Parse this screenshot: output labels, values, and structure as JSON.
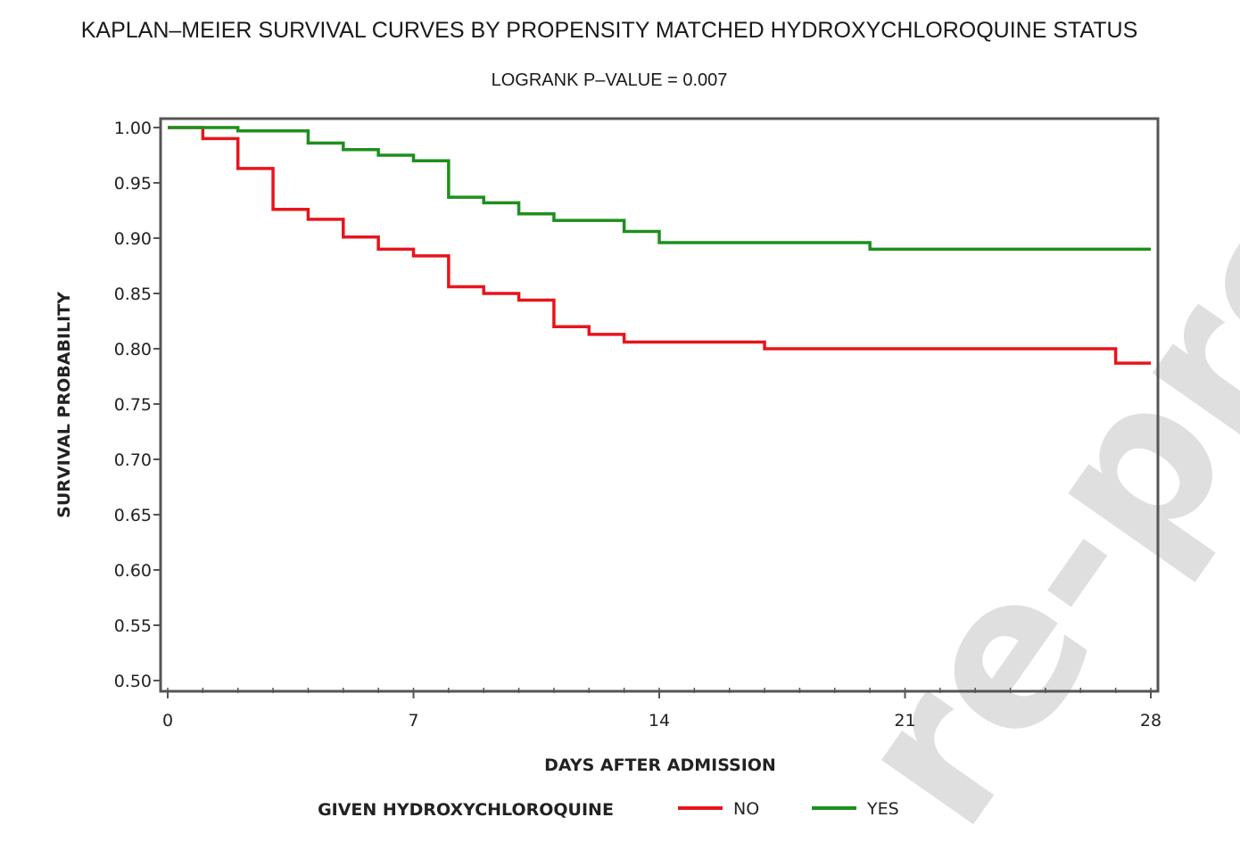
{
  "watermark": "re-proof",
  "colors": {
    "no": "#e8141b",
    "yes": "#1e8f1e",
    "frame": "#555555"
  },
  "chart_data": {
    "type": "line",
    "step": true,
    "title": "KAPLAN–MEIER SURVIVAL CURVES BY PROPENSITY MATCHED HYDROXYCHLOROQUINE STATUS",
    "subtitle": "LOGRANK P–VALUE = 0.007",
    "xlabel": "DAYS AFTER ADMISSION",
    "ylabel": "SURVIVAL PROBABILITY",
    "xlim": [
      0,
      28
    ],
    "ylim": [
      0.5,
      1.0
    ],
    "xticks": [
      "0",
      "7",
      "14",
      "21",
      "28"
    ],
    "yticks": [
      "0.50",
      "0.55",
      "0.60",
      "0.65",
      "0.70",
      "0.75",
      "0.80",
      "0.85",
      "0.90",
      "0.95",
      "1.00"
    ],
    "legend_title": "GIVEN HYDROXYCHLOROQUINE",
    "legend_position": "bottom",
    "grid": false,
    "series": [
      {
        "name": "NO",
        "color": "#e8141b",
        "x": [
          0,
          1,
          2,
          3,
          4,
          5,
          6,
          7,
          8,
          9,
          10,
          11,
          12,
          13,
          17,
          27,
          28
        ],
        "y": [
          1.0,
          0.99,
          0.963,
          0.926,
          0.917,
          0.901,
          0.89,
          0.884,
          0.856,
          0.85,
          0.844,
          0.82,
          0.813,
          0.806,
          0.8,
          0.787,
          0.787
        ]
      },
      {
        "name": "YES",
        "color": "#1e8f1e",
        "x": [
          0,
          2,
          4,
          5,
          6,
          7,
          8,
          9,
          10,
          11,
          13,
          14,
          20,
          28
        ],
        "y": [
          1.0,
          0.997,
          0.986,
          0.98,
          0.975,
          0.97,
          0.937,
          0.932,
          0.922,
          0.916,
          0.906,
          0.896,
          0.89,
          0.89
        ]
      }
    ]
  }
}
